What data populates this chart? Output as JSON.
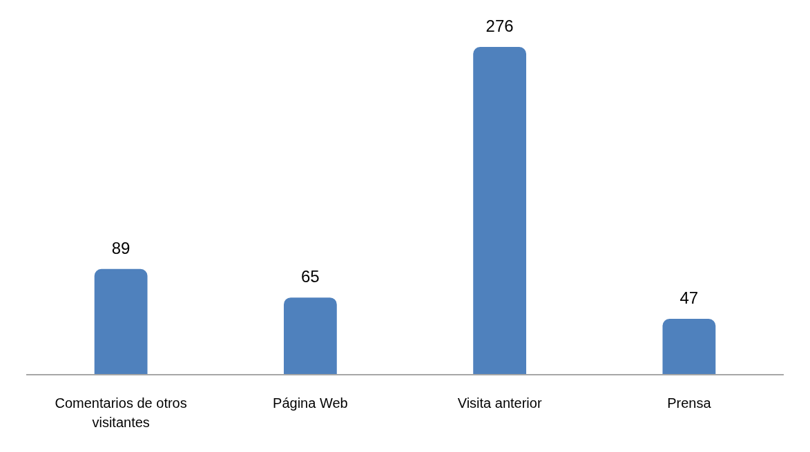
{
  "chart_data": {
    "type": "bar",
    "categories": [
      "Comentarios de otros visitantes",
      "Página Web",
      "Visita anterior",
      "Prensa"
    ],
    "values": [
      89,
      65,
      276,
      47
    ],
    "color": "#4f81bd",
    "data_labels": true
  }
}
